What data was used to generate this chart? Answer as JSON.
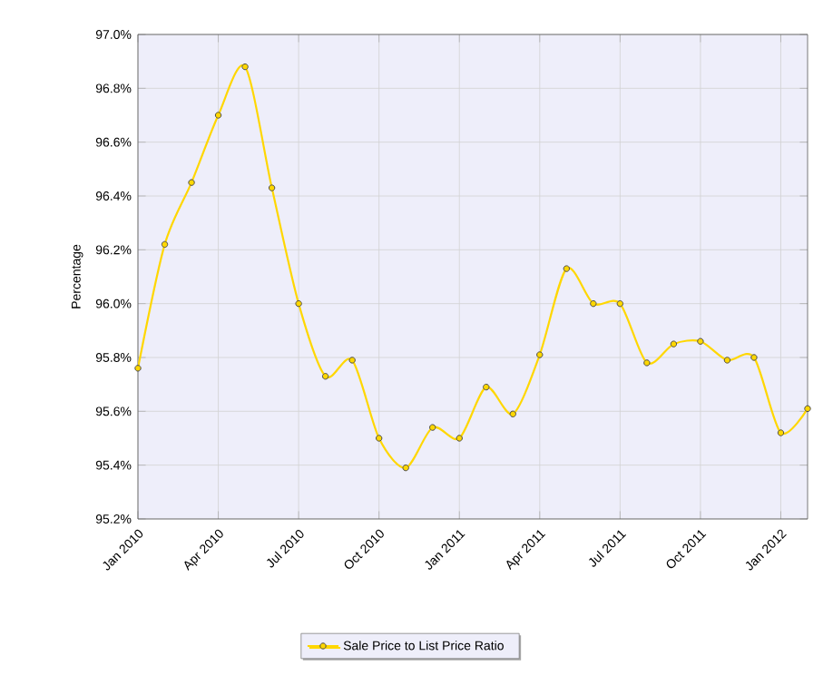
{
  "chart_data": {
    "type": "line",
    "ylabel": "Percentage",
    "x": [
      "2010-01",
      "2010-02",
      "2010-03",
      "2010-04",
      "2010-05",
      "2010-06",
      "2010-07",
      "2010-08",
      "2010-09",
      "2010-10",
      "2010-11",
      "2010-12",
      "2011-01",
      "2011-02",
      "2011-03",
      "2011-04",
      "2011-05",
      "2011-06",
      "2011-07",
      "2011-08",
      "2011-09",
      "2011-10",
      "2011-11",
      "2011-12",
      "2012-01",
      "2012-02"
    ],
    "series": [
      {
        "name": "Sale Price to List Price Ratio",
        "color": "#ffd700",
        "values": [
          95.76,
          96.22,
          96.45,
          96.7,
          96.88,
          96.43,
          96.0,
          95.73,
          95.79,
          95.5,
          95.39,
          95.54,
          95.5,
          95.69,
          95.59,
          95.81,
          96.13,
          96.0,
          96.0,
          95.78,
          95.85,
          95.86,
          95.79,
          95.8,
          95.52,
          95.61
        ]
      }
    ],
    "xlim": [
      "2010-01",
      "2012-02"
    ],
    "xticks": [
      {
        "value": "2010-01",
        "label": "Jan 2010"
      },
      {
        "value": "2010-04",
        "label": "Apr 2010"
      },
      {
        "value": "2010-07",
        "label": "Jul 2010"
      },
      {
        "value": "2010-10",
        "label": "Oct 2010"
      },
      {
        "value": "2011-01",
        "label": "Jan 2011"
      },
      {
        "value": "2011-04",
        "label": "Apr 2011"
      },
      {
        "value": "2011-07",
        "label": "Jul 2011"
      },
      {
        "value": "2011-10",
        "label": "Oct 2011"
      },
      {
        "value": "2012-01",
        "label": "Jan 2012"
      }
    ],
    "ylim": [
      95.2,
      97.0
    ],
    "yticks": [
      {
        "value": 95.2,
        "label": "95.2%"
      },
      {
        "value": 95.4,
        "label": "95.4%"
      },
      {
        "value": 95.6,
        "label": "95.6%"
      },
      {
        "value": 95.8,
        "label": "95.8%"
      },
      {
        "value": 96.0,
        "label": "96.0%"
      },
      {
        "value": 96.2,
        "label": "96.2%"
      },
      {
        "value": 96.4,
        "label": "96.4%"
      },
      {
        "value": 96.6,
        "label": "96.6%"
      },
      {
        "value": 96.8,
        "label": "96.8%"
      },
      {
        "value": 97.0,
        "label": "97.0%"
      }
    ],
    "grid": true,
    "legend": "bottom",
    "marker": "circle",
    "line_style": "solid"
  }
}
